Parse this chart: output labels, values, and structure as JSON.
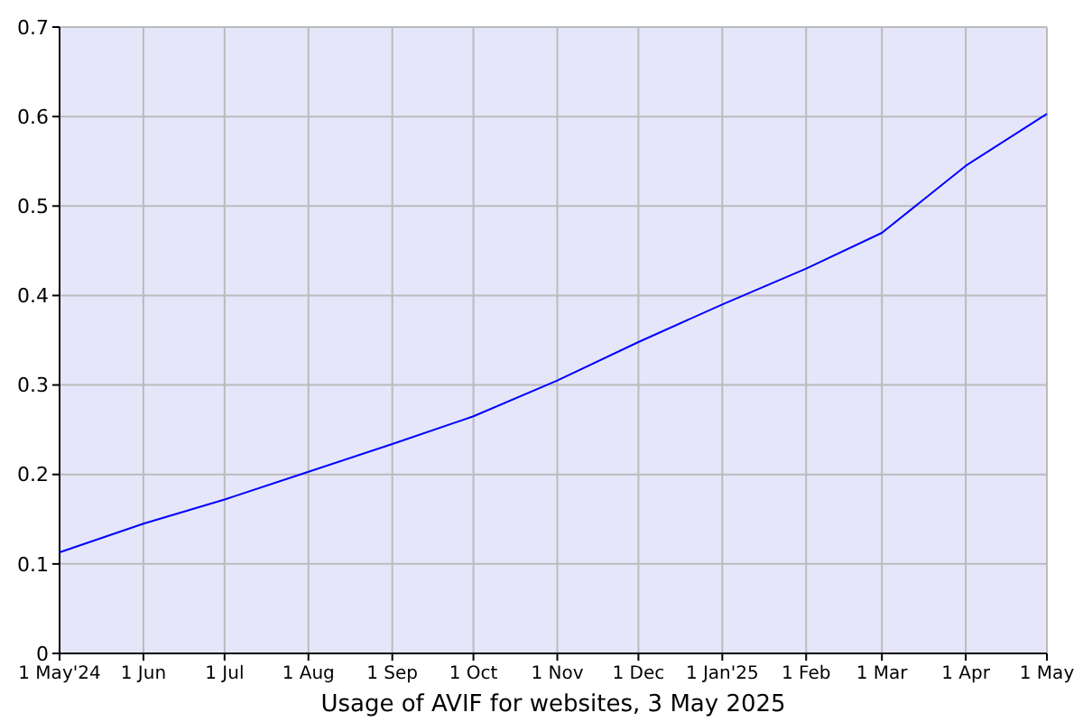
{
  "chart_data": {
    "type": "line",
    "xlabel": "Usage of AVIF for websites, 3 May 2025",
    "x": [
      "2024-05-01",
      "2024-06-01",
      "2024-07-01",
      "2024-08-01",
      "2024-09-01",
      "2024-10-01",
      "2024-11-01",
      "2024-12-01",
      "2025-01-01",
      "2025-02-01",
      "2025-03-01",
      "2025-04-01",
      "2025-05-01"
    ],
    "series": [
      {
        "color": "#0000ff",
        "values": [
          0.113,
          0.145,
          0.172,
          0.203,
          0.234,
          0.265,
          0.305,
          0.348,
          0.39,
          0.43,
          0.47,
          0.545,
          0.603
        ]
      }
    ],
    "xlim": [
      "2024-05-01",
      "2025-05-01"
    ],
    "xticks": [
      {
        "value": "2024-05-01",
        "label": "1 May'24"
      },
      {
        "value": "2024-06-01",
        "label": "1 Jun"
      },
      {
        "value": "2024-07-01",
        "label": "1 Jul"
      },
      {
        "value": "2024-08-01",
        "label": "1 Aug"
      },
      {
        "value": "2024-09-01",
        "label": "1 Sep"
      },
      {
        "value": "2024-10-01",
        "label": "1 Oct"
      },
      {
        "value": "2024-11-01",
        "label": "1 Nov"
      },
      {
        "value": "2024-12-01",
        "label": "1 Dec"
      },
      {
        "value": "2025-01-01",
        "label": "1 Jan'25"
      },
      {
        "value": "2025-02-01",
        "label": "1 Feb"
      },
      {
        "value": "2025-03-01",
        "label": "1 Mar"
      },
      {
        "value": "2025-04-01",
        "label": "1 Apr"
      },
      {
        "value": "2025-05-01",
        "label": "1 May"
      }
    ],
    "ylim": [
      0,
      0.7
    ],
    "yticks": [
      0,
      0.1,
      0.2,
      0.3,
      0.4,
      0.5,
      0.6,
      0.7
    ],
    "grid": true
  }
}
